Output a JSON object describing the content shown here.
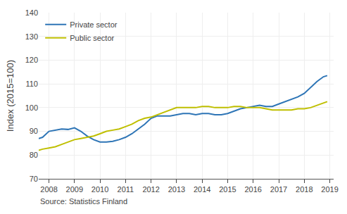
{
  "chart_data": {
    "type": "line",
    "ylabel": "Index (2015=100)",
    "annotations": [
      "Source: Statistics Finland"
    ],
    "x": [
      2007.6,
      2007.75,
      2008.0,
      2008.25,
      2008.5,
      2008.75,
      2009.0,
      2009.25,
      2009.5,
      2009.75,
      2010.0,
      2010.25,
      2010.5,
      2010.75,
      2011.0,
      2011.25,
      2011.5,
      2011.75,
      2012.0,
      2012.25,
      2012.5,
      2012.75,
      2013.0,
      2013.25,
      2013.5,
      2013.75,
      2014.0,
      2014.25,
      2014.5,
      2014.75,
      2015.0,
      2015.25,
      2015.5,
      2015.75,
      2016.0,
      2016.25,
      2016.5,
      2016.75,
      2017.0,
      2017.25,
      2017.5,
      2017.75,
      2018.0,
      2018.25,
      2018.5,
      2018.75,
      2018.9
    ],
    "series": [
      {
        "name": "Private sector",
        "color": "#2e75b6",
        "values": [
          87.0,
          87.5,
          90.0,
          90.5,
          91.0,
          90.8,
          91.5,
          90.0,
          88.0,
          86.5,
          85.5,
          85.5,
          85.8,
          86.5,
          87.5,
          89.0,
          91.0,
          93.0,
          95.5,
          96.5,
          96.5,
          96.5,
          97.0,
          97.5,
          97.5,
          97.0,
          97.5,
          97.5,
          97.0,
          97.0,
          97.5,
          98.5,
          99.5,
          100.0,
          100.5,
          101.0,
          100.5,
          100.5,
          101.5,
          102.5,
          103.5,
          104.5,
          106.0,
          108.5,
          111.0,
          113.0,
          113.5
        ]
      },
      {
        "name": "Public sector",
        "color": "#bfbf00",
        "values": [
          82.0,
          82.5,
          83.0,
          83.5,
          84.5,
          85.5,
          86.5,
          87.0,
          87.5,
          88.0,
          89.0,
          90.0,
          90.5,
          91.0,
          92.0,
          93.0,
          94.5,
          95.5,
          96.0,
          97.0,
          98.0,
          99.0,
          100.0,
          100.0,
          100.0,
          100.0,
          100.5,
          100.5,
          100.0,
          100.0,
          100.0,
          100.5,
          100.5,
          100.0,
          100.0,
          100.0,
          99.5,
          99.0,
          99.0,
          99.0,
          99.0,
          99.5,
          99.5,
          100.0,
          101.0,
          102.0,
          102.5
        ]
      }
    ],
    "xlim": [
      2007.6,
      2019.15
    ],
    "xticks": [
      2008,
      2009,
      2010,
      2011,
      2012,
      2013,
      2014,
      2015,
      2016,
      2017,
      2018,
      2019
    ],
    "ylim": [
      70,
      140
    ],
    "yticks": [
      70,
      80,
      90,
      100,
      110,
      120,
      130,
      140
    ],
    "grid": true,
    "legend": "upper left"
  }
}
